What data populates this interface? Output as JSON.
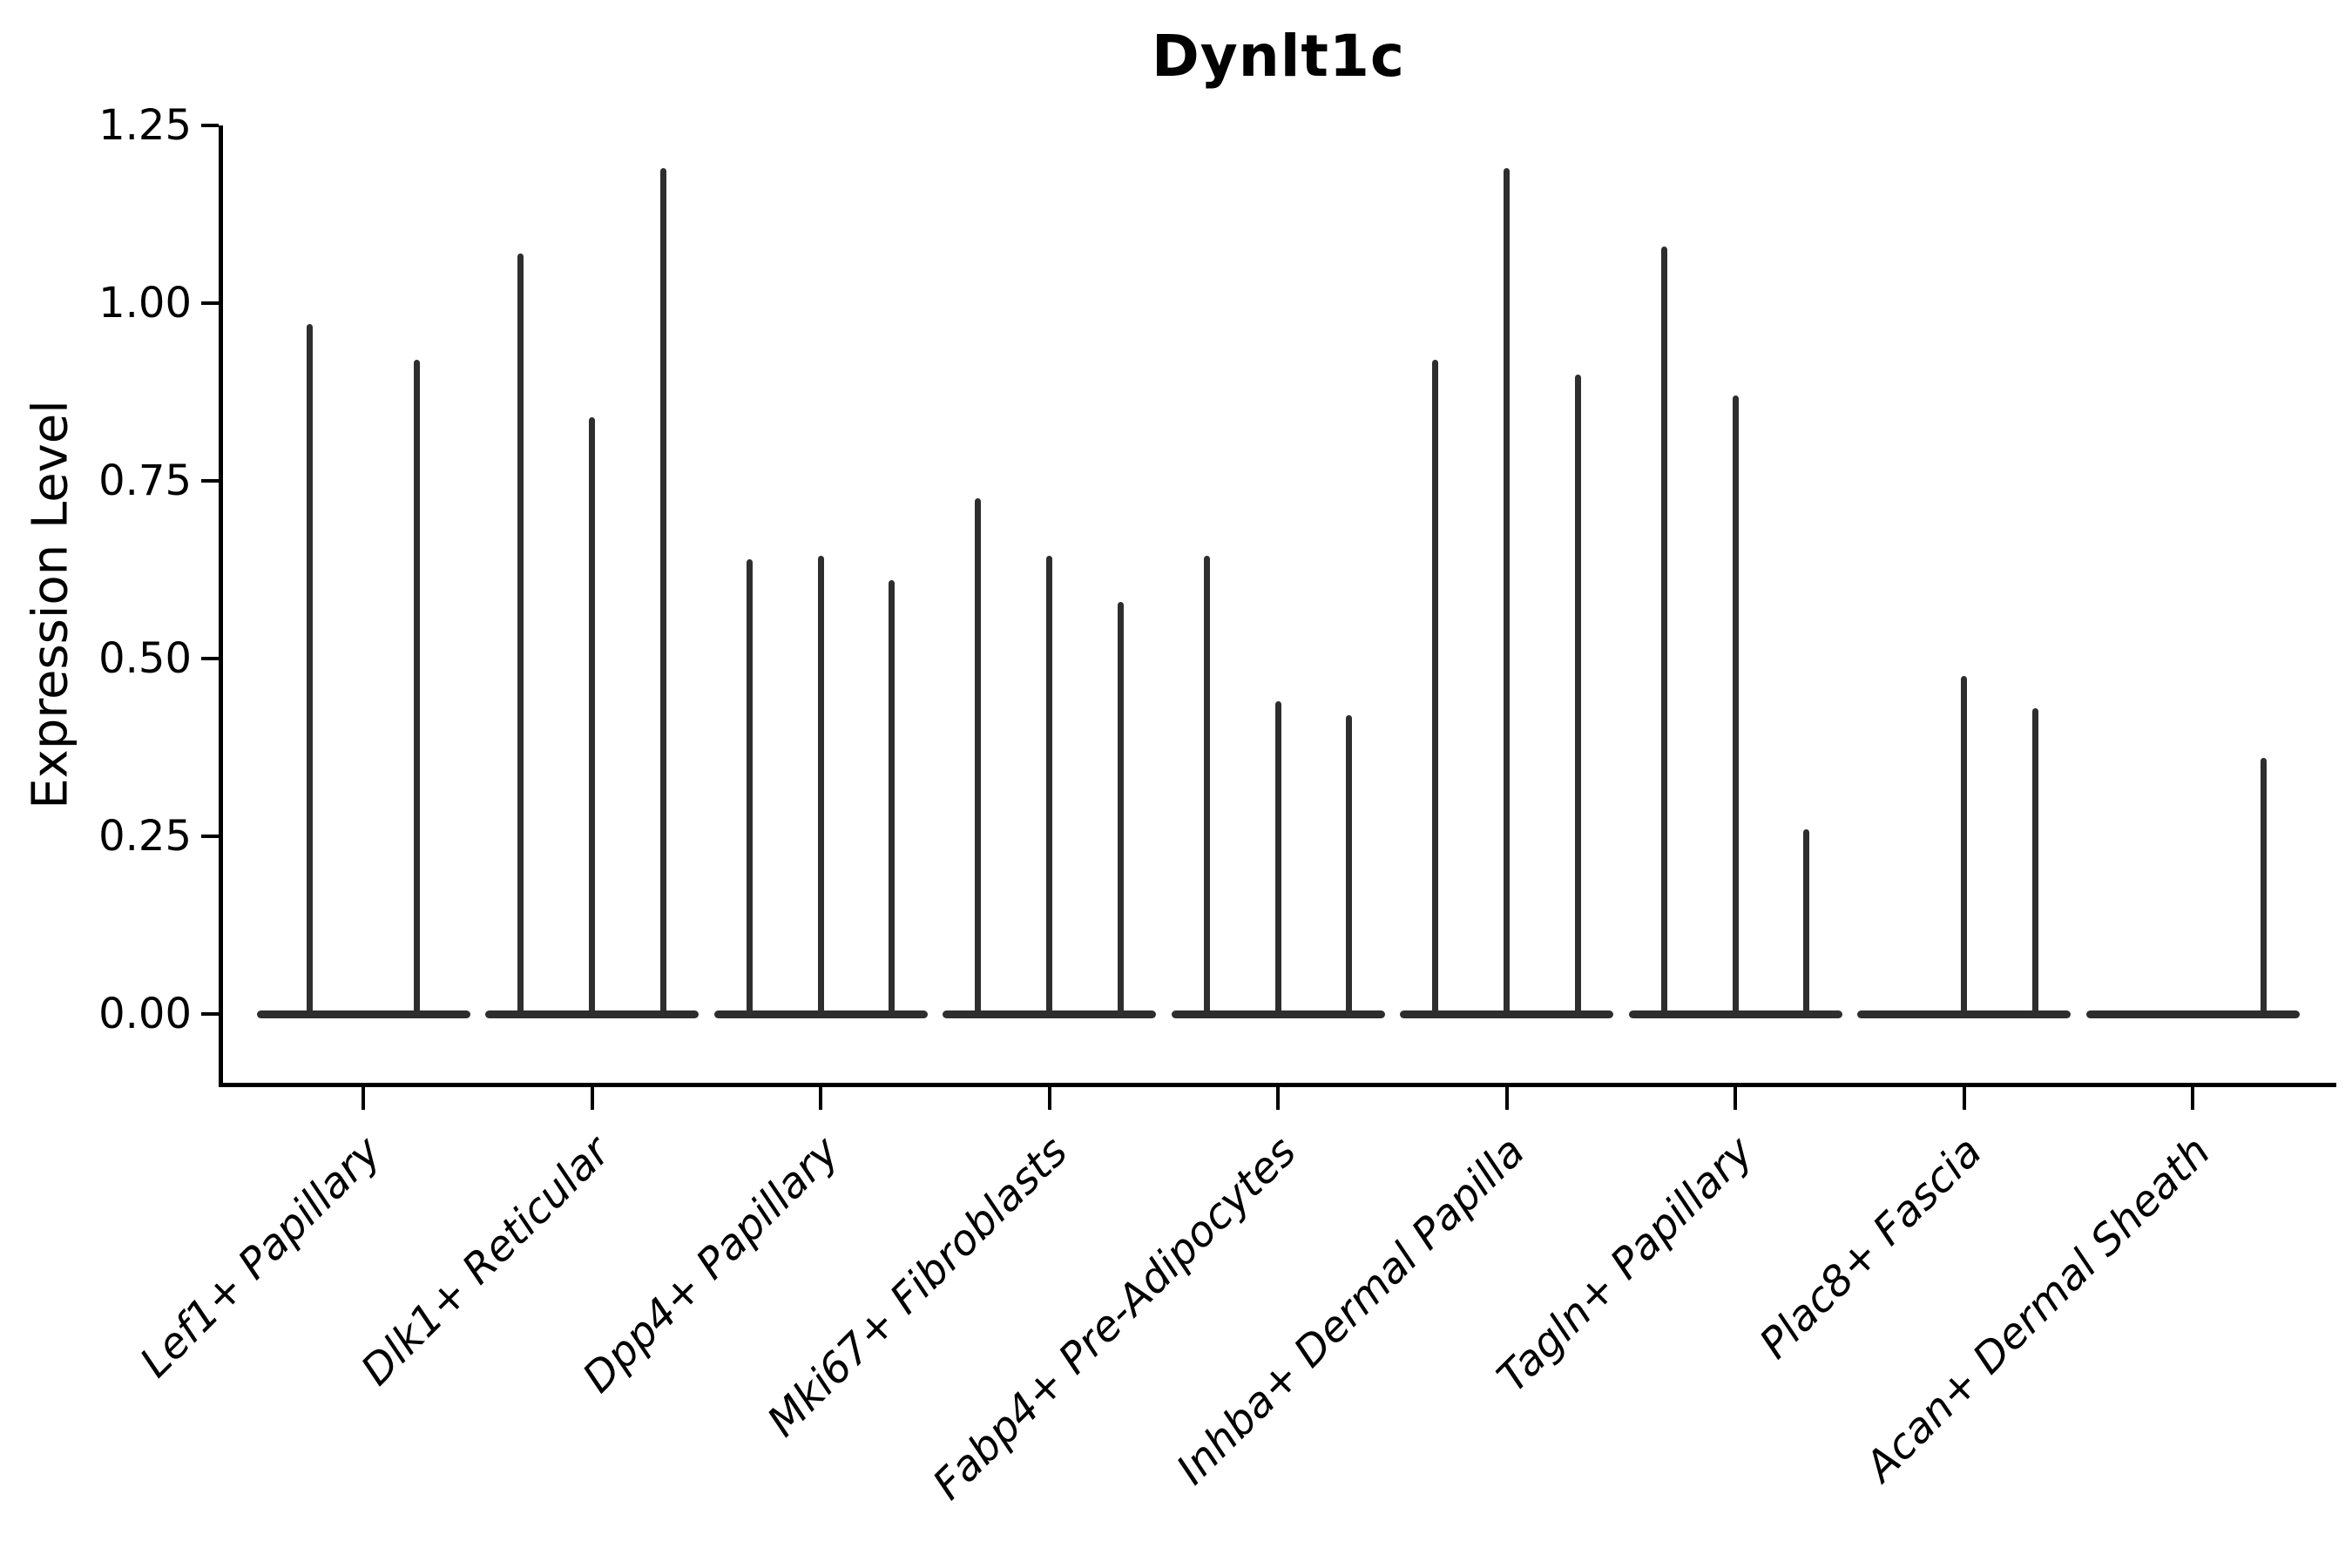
{
  "figure": {
    "title": "Dynlt1c",
    "y_axis": {
      "label": "Expression Level",
      "ticks": [
        "0.00",
        "0.25",
        "0.50",
        "0.75",
        "1.00",
        "1.25"
      ]
    },
    "x_axis": {
      "categories": [
        "Lef1+ Papillary",
        "Dlk1+ Reticular",
        "Dpp4+ Papillary",
        "Mki67+ Fibroblasts",
        "Fabp4+ Pre-Adipocytes",
        "Inhba+ Dermal Papilla",
        "Tagln+ Papillary",
        "Plac8+ Fascia",
        "Acan+ Dermal Sheath"
      ]
    }
  },
  "chart_data": {
    "type": "violin",
    "title": "Dynlt1c",
    "xlabel": "",
    "ylabel": "Expression Level",
    "ylim": [
      -0.097,
      1.25
    ],
    "yticks": [
      0,
      0.25,
      0.5,
      0.75,
      1,
      1.25
    ],
    "grid": false,
    "legend": "none",
    "style": "near-zero-width spike violins rising from a flat baseline at 0; dark gray strokes on white",
    "categories": [
      "Lef1+ Papillary",
      "Dlk1+ Reticular",
      "Dpp4+ Papillary",
      "Mki67+ Fibroblasts",
      "Fabp4+ Pre-Adipocytes",
      "Inhba+ Dermal Papilla",
      "Tagln+ Papillary",
      "Plac8+ Fascia",
      "Acan+ Dermal Sheath"
    ],
    "series": [
      {
        "name": "Lef1+ Papillary",
        "violin_peaks": [
          0.97,
          0.92
        ]
      },
      {
        "name": "Dlk1+ Reticular",
        "violin_peaks": [
          1.07,
          0.84,
          1.19
        ]
      },
      {
        "name": "Dpp4+ Papillary",
        "violin_peaks": [
          0.64,
          0.645,
          0.61
        ]
      },
      {
        "name": "Mki67+ Fibroblasts",
        "violin_peaks": [
          0.725,
          0.645,
          0.58
        ]
      },
      {
        "name": "Fabp4+ Pre-Adipocytes",
        "violin_peaks": [
          0.645,
          0.44,
          0.42
        ]
      },
      {
        "name": "Inhba+ Dermal Papilla",
        "violin_peaks": [
          0.92,
          1.19,
          0.9
        ]
      },
      {
        "name": "Tagln+ Papillary",
        "violin_peaks": [
          1.08,
          0.87,
          0.26
        ]
      },
      {
        "name": "Plac8+ Fascia",
        "violin_peaks": [
          0,
          0.475,
          0.43
        ]
      },
      {
        "name": "Acan+ Dermal Sheath",
        "violin_peaks": [
          0,
          0,
          0.36
        ]
      }
    ],
    "colors": {
      "stroke": "#2e2e2e",
      "axis": "#000000",
      "background": "#ffffff"
    }
  }
}
